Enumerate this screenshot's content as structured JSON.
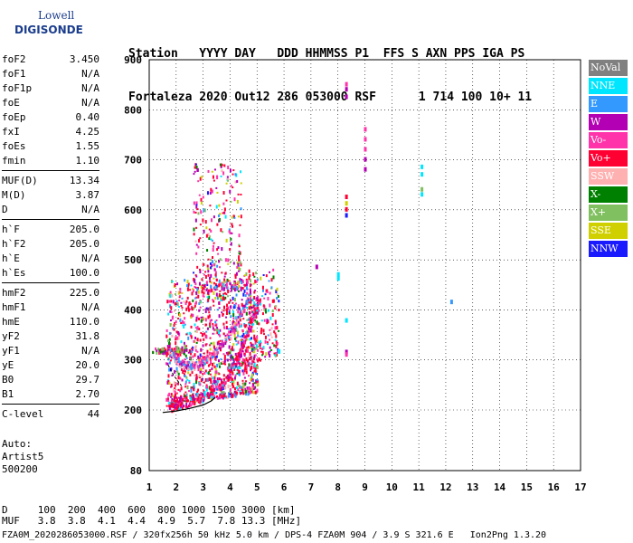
{
  "logo": {
    "line1": "Lowell",
    "line2": "DIGISONDE"
  },
  "header": {
    "line1": "Station   YYYY DAY   DDD HHMMSS P1  FFS S AXN PPS IGA PS",
    "line2": "Fortaleza 2020 Out12 286 053000 RSF      1 714 100 10+ 11"
  },
  "parameters": [
    {
      "name": "foF2",
      "value": "3.450"
    },
    {
      "name": "foF1",
      "value": "N/A"
    },
    {
      "name": "foF1p",
      "value": "N/A"
    },
    {
      "name": "foE",
      "value": "N/A"
    },
    {
      "name": "foEp",
      "value": "0.40"
    },
    {
      "name": "fxI",
      "value": "4.25"
    },
    {
      "name": "foEs",
      "value": "1.55"
    },
    {
      "name": "fmin",
      "value": "1.10"
    },
    {
      "sep": true
    },
    {
      "name": "MUF(D)",
      "value": "13.34"
    },
    {
      "name": "M(D)",
      "value": "3.87"
    },
    {
      "name": "D",
      "value": "N/A"
    },
    {
      "sep": true
    },
    {
      "name": "h`F",
      "value": "205.0"
    },
    {
      "name": "h`F2",
      "value": "205.0"
    },
    {
      "name": "h`E",
      "value": "N/A"
    },
    {
      "name": "h`Es",
      "value": "100.0"
    },
    {
      "sep": true
    },
    {
      "name": "hmF2",
      "value": "225.0"
    },
    {
      "name": "hmF1",
      "value": "N/A"
    },
    {
      "name": "hmE",
      "value": "110.0"
    },
    {
      "name": "yF2",
      "value": "31.8"
    },
    {
      "name": "yF1",
      "value": "N/A"
    },
    {
      "name": "yE",
      "value": "20.0"
    },
    {
      "name": "B0",
      "value": "29.7"
    },
    {
      "name": "B1",
      "value": "2.70"
    },
    {
      "sep": true
    },
    {
      "name": "C-level",
      "value": "44"
    }
  ],
  "auto": {
    "line1": "Auto:",
    "line2": "Artist5",
    "line3": "500200"
  },
  "legend": [
    {
      "label": "NoVal",
      "color": "#808080"
    },
    {
      "label": "NNE",
      "color": "#00e6ff"
    },
    {
      "label": "E",
      "color": "#3399ff"
    },
    {
      "label": "W",
      "color": "#b400b4"
    },
    {
      "label": "Vo-",
      "color": "#ff33aa"
    },
    {
      "label": "Vo+",
      "color": "#ff0033"
    },
    {
      "label": "SSW",
      "color": "#ffb0b0"
    },
    {
      "label": "X-",
      "color": "#008000"
    },
    {
      "label": "X+",
      "color": "#80c060"
    },
    {
      "label": "SSE",
      "color": "#d0d000"
    },
    {
      "label": "NNW",
      "color": "#1a1aff"
    }
  ],
  "footer": {
    "line1": "D     100  200  400  600  800 1000 1500 3000 [km]",
    "line2": "MUF   3.8  3.8  4.1  4.4  4.9  5.7  7.8 13.3 [MHz]",
    "line3": "FZA0M_2020286053000.RSF / 320fx256h 50 kHz 5.0 km / DPS-4 FZA0M 904 / 3.9 S 321.6 E   Ion2Png 1.3.20"
  },
  "chart_data": {
    "type": "scatter",
    "xlim": [
      1,
      17
    ],
    "ylim": [
      80,
      900
    ],
    "x_ticks": [
      "1",
      "2",
      "3",
      "4",
      "5",
      "6",
      "7",
      "8",
      "9",
      "10",
      "11",
      "12",
      "13",
      "14",
      "15",
      "16",
      "17"
    ],
    "y_ticks": [
      "80",
      "200",
      "300",
      "400",
      "500",
      "600",
      "700",
      "800",
      "900"
    ],
    "y_tick_values": [
      80,
      200,
      300,
      400,
      500,
      600,
      700,
      800,
      900
    ],
    "grid": true,
    "legend_position": "right",
    "trace_points": [
      [
        1.7,
        198
      ],
      [
        1.9,
        205
      ],
      [
        2.1,
        206
      ],
      [
        2.4,
        210
      ],
      [
        2.7,
        215
      ],
      [
        3.0,
        222
      ],
      [
        3.3,
        232
      ],
      [
        3.6,
        245
      ],
      [
        3.9,
        262
      ],
      [
        4.1,
        282
      ],
      [
        4.3,
        300
      ],
      [
        4.5,
        330
      ],
      [
        4.7,
        360
      ],
      [
        4.9,
        390
      ],
      [
        5.1,
        410
      ]
    ],
    "trace2_points": [
      [
        1.7,
        315
      ],
      [
        1.9,
        300
      ],
      [
        2.1,
        290
      ],
      [
        2.3,
        285
      ],
      [
        2.6,
        285
      ],
      [
        2.9,
        290
      ],
      [
        3.2,
        300
      ],
      [
        3.5,
        315
      ],
      [
        3.8,
        335
      ],
      [
        4.1,
        360
      ],
      [
        4.4,
        390
      ],
      [
        4.7,
        420
      ]
    ],
    "fit_curve": [
      [
        1.5,
        195
      ],
      [
        2.0,
        198
      ],
      [
        2.5,
        203
      ],
      [
        3.0,
        210
      ],
      [
        3.3,
        218
      ],
      [
        3.45,
        225
      ]
    ],
    "fit_curve2": [
      [
        1.7,
        290
      ],
      [
        1.9,
        270
      ],
      [
        2.1,
        255
      ],
      [
        2.2,
        248
      ]
    ],
    "isolated_points": [
      {
        "x": 8.3,
        "y": 850,
        "c": 4
      },
      {
        "x": 8.3,
        "y": 840,
        "c": 3
      },
      {
        "x": 8.3,
        "y": 825,
        "c": 3
      },
      {
        "x": 9.0,
        "y": 760,
        "c": 4
      },
      {
        "x": 9.0,
        "y": 740,
        "c": 4
      },
      {
        "x": 9.0,
        "y": 720,
        "c": 4
      },
      {
        "x": 9.0,
        "y": 700,
        "c": 3
      },
      {
        "x": 9.0,
        "y": 680,
        "c": 3
      },
      {
        "x": 8.3,
        "y": 625,
        "c": 5
      },
      {
        "x": 8.3,
        "y": 612,
        "c": 9
      },
      {
        "x": 8.3,
        "y": 600,
        "c": 5
      },
      {
        "x": 8.3,
        "y": 588,
        "c": 10
      },
      {
        "x": 11.1,
        "y": 685,
        "c": 1
      },
      {
        "x": 11.1,
        "y": 670,
        "c": 1
      },
      {
        "x": 11.1,
        "y": 640,
        "c": 8
      },
      {
        "x": 11.1,
        "y": 630,
        "c": 1
      },
      {
        "x": 7.2,
        "y": 485,
        "c": 3
      },
      {
        "x": 8.0,
        "y": 470,
        "c": 1
      },
      {
        "x": 8.0,
        "y": 462,
        "c": 1
      },
      {
        "x": 12.2,
        "y": 415,
        "c": 2
      },
      {
        "x": 8.3,
        "y": 378,
        "c": 1
      },
      {
        "x": 5.8,
        "y": 316,
        "c": 1
      },
      {
        "x": 8.3,
        "y": 315,
        "c": 3
      },
      {
        "x": 8.3,
        "y": 310,
        "c": 4
      }
    ],
    "cloud": [
      {
        "xmin": 1.6,
        "xmax": 5.0,
        "ymin": 205,
        "ymax": 460,
        "n": 1100
      },
      {
        "xmin": 2.6,
        "xmax": 4.4,
        "ymin": 420,
        "ymax": 690,
        "n": 260
      },
      {
        "xmin": 4.0,
        "xmax": 5.8,
        "ymin": 280,
        "ymax": 480,
        "n": 240
      }
    ],
    "es_layer": [
      {
        "xmin": 1.1,
        "xmax": 2.3,
        "ymin": 311,
        "ymax": 322,
        "n": 90
      }
    ]
  }
}
